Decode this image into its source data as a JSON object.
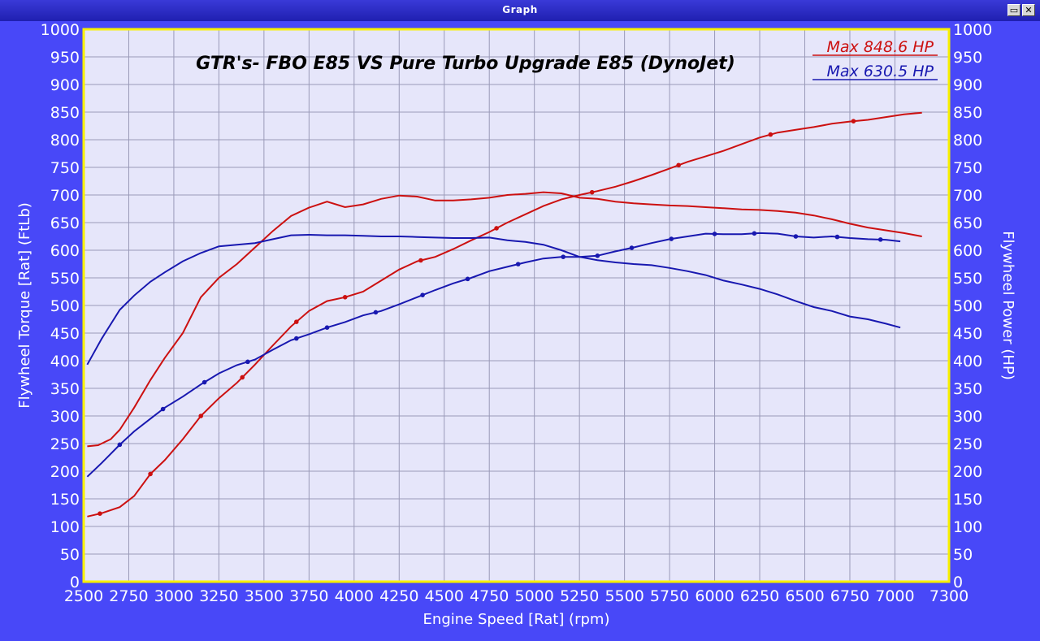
{
  "window": {
    "title": "Graph",
    "restore_icon": "restore-icon",
    "close_icon": "close-icon",
    "restore_glyph": "▭",
    "close_glyph": "✕"
  },
  "colors": {
    "background": "#4848f8",
    "plot_bg": "#e6e6fa",
    "plot_border": "#f8f000",
    "grid": "#9a9ab8",
    "red": "#cc1010",
    "blue": "#1818b0",
    "text": "#ffffff",
    "title": "#000000"
  },
  "chart_data": {
    "type": "line",
    "title": "GTR's- FBO E85 VS Pure Turbo Upgrade E85 (DynoJet)",
    "xlabel": "Engine Speed [Rat] (rpm)",
    "ylabel_left": "Flywheel Torque [Rat] (FtLb)",
    "ylabel_right": "Flywheel Power (HP)",
    "xlim": [
      2500,
      7300
    ],
    "ylim": [
      0,
      1000
    ],
    "x_ticks": [
      2500,
      2750,
      3000,
      3250,
      3500,
      3750,
      4000,
      4250,
      4500,
      4750,
      5000,
      5250,
      5500,
      5750,
      6000,
      6250,
      6500,
      6750,
      7000,
      7300
    ],
    "y_ticks": [
      0,
      50,
      100,
      150,
      200,
      250,
      300,
      350,
      400,
      450,
      500,
      550,
      600,
      650,
      700,
      750,
      800,
      850,
      900,
      950,
      1000
    ],
    "grid": true,
    "legend_position": "top-right",
    "legend": [
      {
        "label": "Max 848.6 HP",
        "color": "#cc1010"
      },
      {
        "label": "Max 630.5 HP",
        "color": "#1818b0"
      }
    ],
    "series": [
      {
        "color": "#cc1010",
        "x": [
          2520,
          2580,
          2650,
          2700,
          2780,
          2870,
          2950,
          3050,
          3150,
          3250,
          3350,
          3450,
          3550,
          3650,
          3750,
          3850,
          3950,
          4050,
          4150,
          4250,
          4350,
          4450,
          4550,
          4650,
          4750,
          4850,
          4950,
          5050,
          5150,
          5250,
          5350,
          5450,
          5550,
          5650,
          5750,
          5850,
          5950,
          6050,
          6150,
          6250,
          6350,
          6450,
          6550,
          6650,
          6750,
          6850,
          6950,
          7050,
          7150
        ],
        "y": [
          245,
          247,
          258,
          275,
          315,
          365,
          405,
          450,
          515,
          550,
          575,
          605,
          635,
          662,
          677,
          688,
          678,
          683,
          693,
          699,
          697,
          690,
          690,
          692,
          695,
          700,
          702,
          705,
          703,
          695,
          693,
          688,
          685,
          683,
          681,
          680,
          678,
          676,
          674,
          673,
          671,
          668,
          663,
          656,
          648,
          641,
          636,
          631,
          625
        ]
      },
      {
        "color": "#cc1010",
        "x": [
          2520,
          2600,
          2700,
          2780,
          2870,
          2950,
          3050,
          3150,
          3250,
          3350,
          3450,
          3550,
          3650,
          3750,
          3850,
          3950,
          4050,
          4150,
          4250,
          4350,
          4450,
          4550,
          4650,
          4750,
          4850,
          4950,
          5050,
          5150,
          5250,
          5350,
          5450,
          5550,
          5650,
          5750,
          5850,
          5950,
          6050,
          6150,
          6250,
          6350,
          6450,
          6550,
          6650,
          6750,
          6850,
          6950,
          7050,
          7150
        ],
        "y": [
          118,
          124,
          135,
          155,
          195,
          220,
          258,
          300,
          332,
          360,
          393,
          428,
          462,
          490,
          508,
          515,
          525,
          545,
          565,
          580,
          588,
          602,
          618,
          633,
          650,
          665,
          680,
          692,
          700,
          707,
          715,
          725,
          736,
          748,
          760,
          770,
          780,
          792,
          804,
          813,
          818,
          823,
          829,
          833,
          836,
          841,
          846,
          849
        ]
      },
      {
        "color": "#1818b0",
        "x": [
          2520,
          2600,
          2700,
          2780,
          2870,
          2950,
          3050,
          3150,
          3250,
          3350,
          3450,
          3550,
          3650,
          3750,
          3850,
          3950,
          4050,
          4150,
          4250,
          4350,
          4450,
          4550,
          4650,
          4750,
          4850,
          4950,
          5050,
          5150,
          5250,
          5350,
          5450,
          5550,
          5650,
          5750,
          5850,
          5950,
          6050,
          6150,
          6250,
          6350,
          6450,
          6550,
          6650,
          6750,
          6850,
          6950,
          7030
        ],
        "y": [
          393,
          440,
          492,
          518,
          543,
          560,
          580,
          595,
          607,
          610,
          613,
          620,
          627,
          628,
          627,
          627,
          626,
          625,
          625,
          624,
          623,
          622,
          622,
          623,
          618,
          615,
          610,
          600,
          588,
          582,
          578,
          575,
          573,
          568,
          562,
          555,
          545,
          538,
          530,
          520,
          508,
          497,
          490,
          480,
          475,
          467,
          460
        ]
      },
      {
        "color": "#1818b0",
        "x": [
          2520,
          2600,
          2700,
          2780,
          2870,
          2950,
          3050,
          3150,
          3250,
          3350,
          3450,
          3550,
          3650,
          3750,
          3850,
          3950,
          4050,
          4150,
          4250,
          4350,
          4450,
          4550,
          4650,
          4750,
          4850,
          4950,
          5050,
          5150,
          5250,
          5350,
          5450,
          5550,
          5650,
          5750,
          5850,
          5950,
          6050,
          6150,
          6250,
          6350,
          6450,
          6550,
          6650,
          6750,
          6850,
          6950,
          7030
        ],
        "y": [
          190,
          215,
          248,
          272,
          295,
          315,
          335,
          357,
          377,
          392,
          402,
          420,
          437,
          448,
          460,
          470,
          482,
          490,
          502,
          515,
          528,
          540,
          550,
          562,
          570,
          578,
          585,
          588,
          588,
          590,
          598,
          605,
          613,
          620,
          625,
          630,
          629,
          629,
          631,
          630,
          625,
          623,
          625,
          622,
          620,
          619,
          616
        ]
      }
    ],
    "markers": [
      {
        "color": "#cc1010",
        "x": [
          2590,
          2870,
          3150,
          3380,
          3680,
          3950,
          4370,
          4790,
          5320,
          5800,
          6310,
          6770
        ]
      },
      {
        "color": "#1818b0",
        "x": [
          2700,
          2940,
          3170,
          3410,
          3680,
          3850,
          4120,
          4380,
          4630,
          4910,
          5160,
          5350,
          5540,
          5760,
          6000,
          6220,
          6450,
          6680,
          6920
        ]
      }
    ]
  }
}
